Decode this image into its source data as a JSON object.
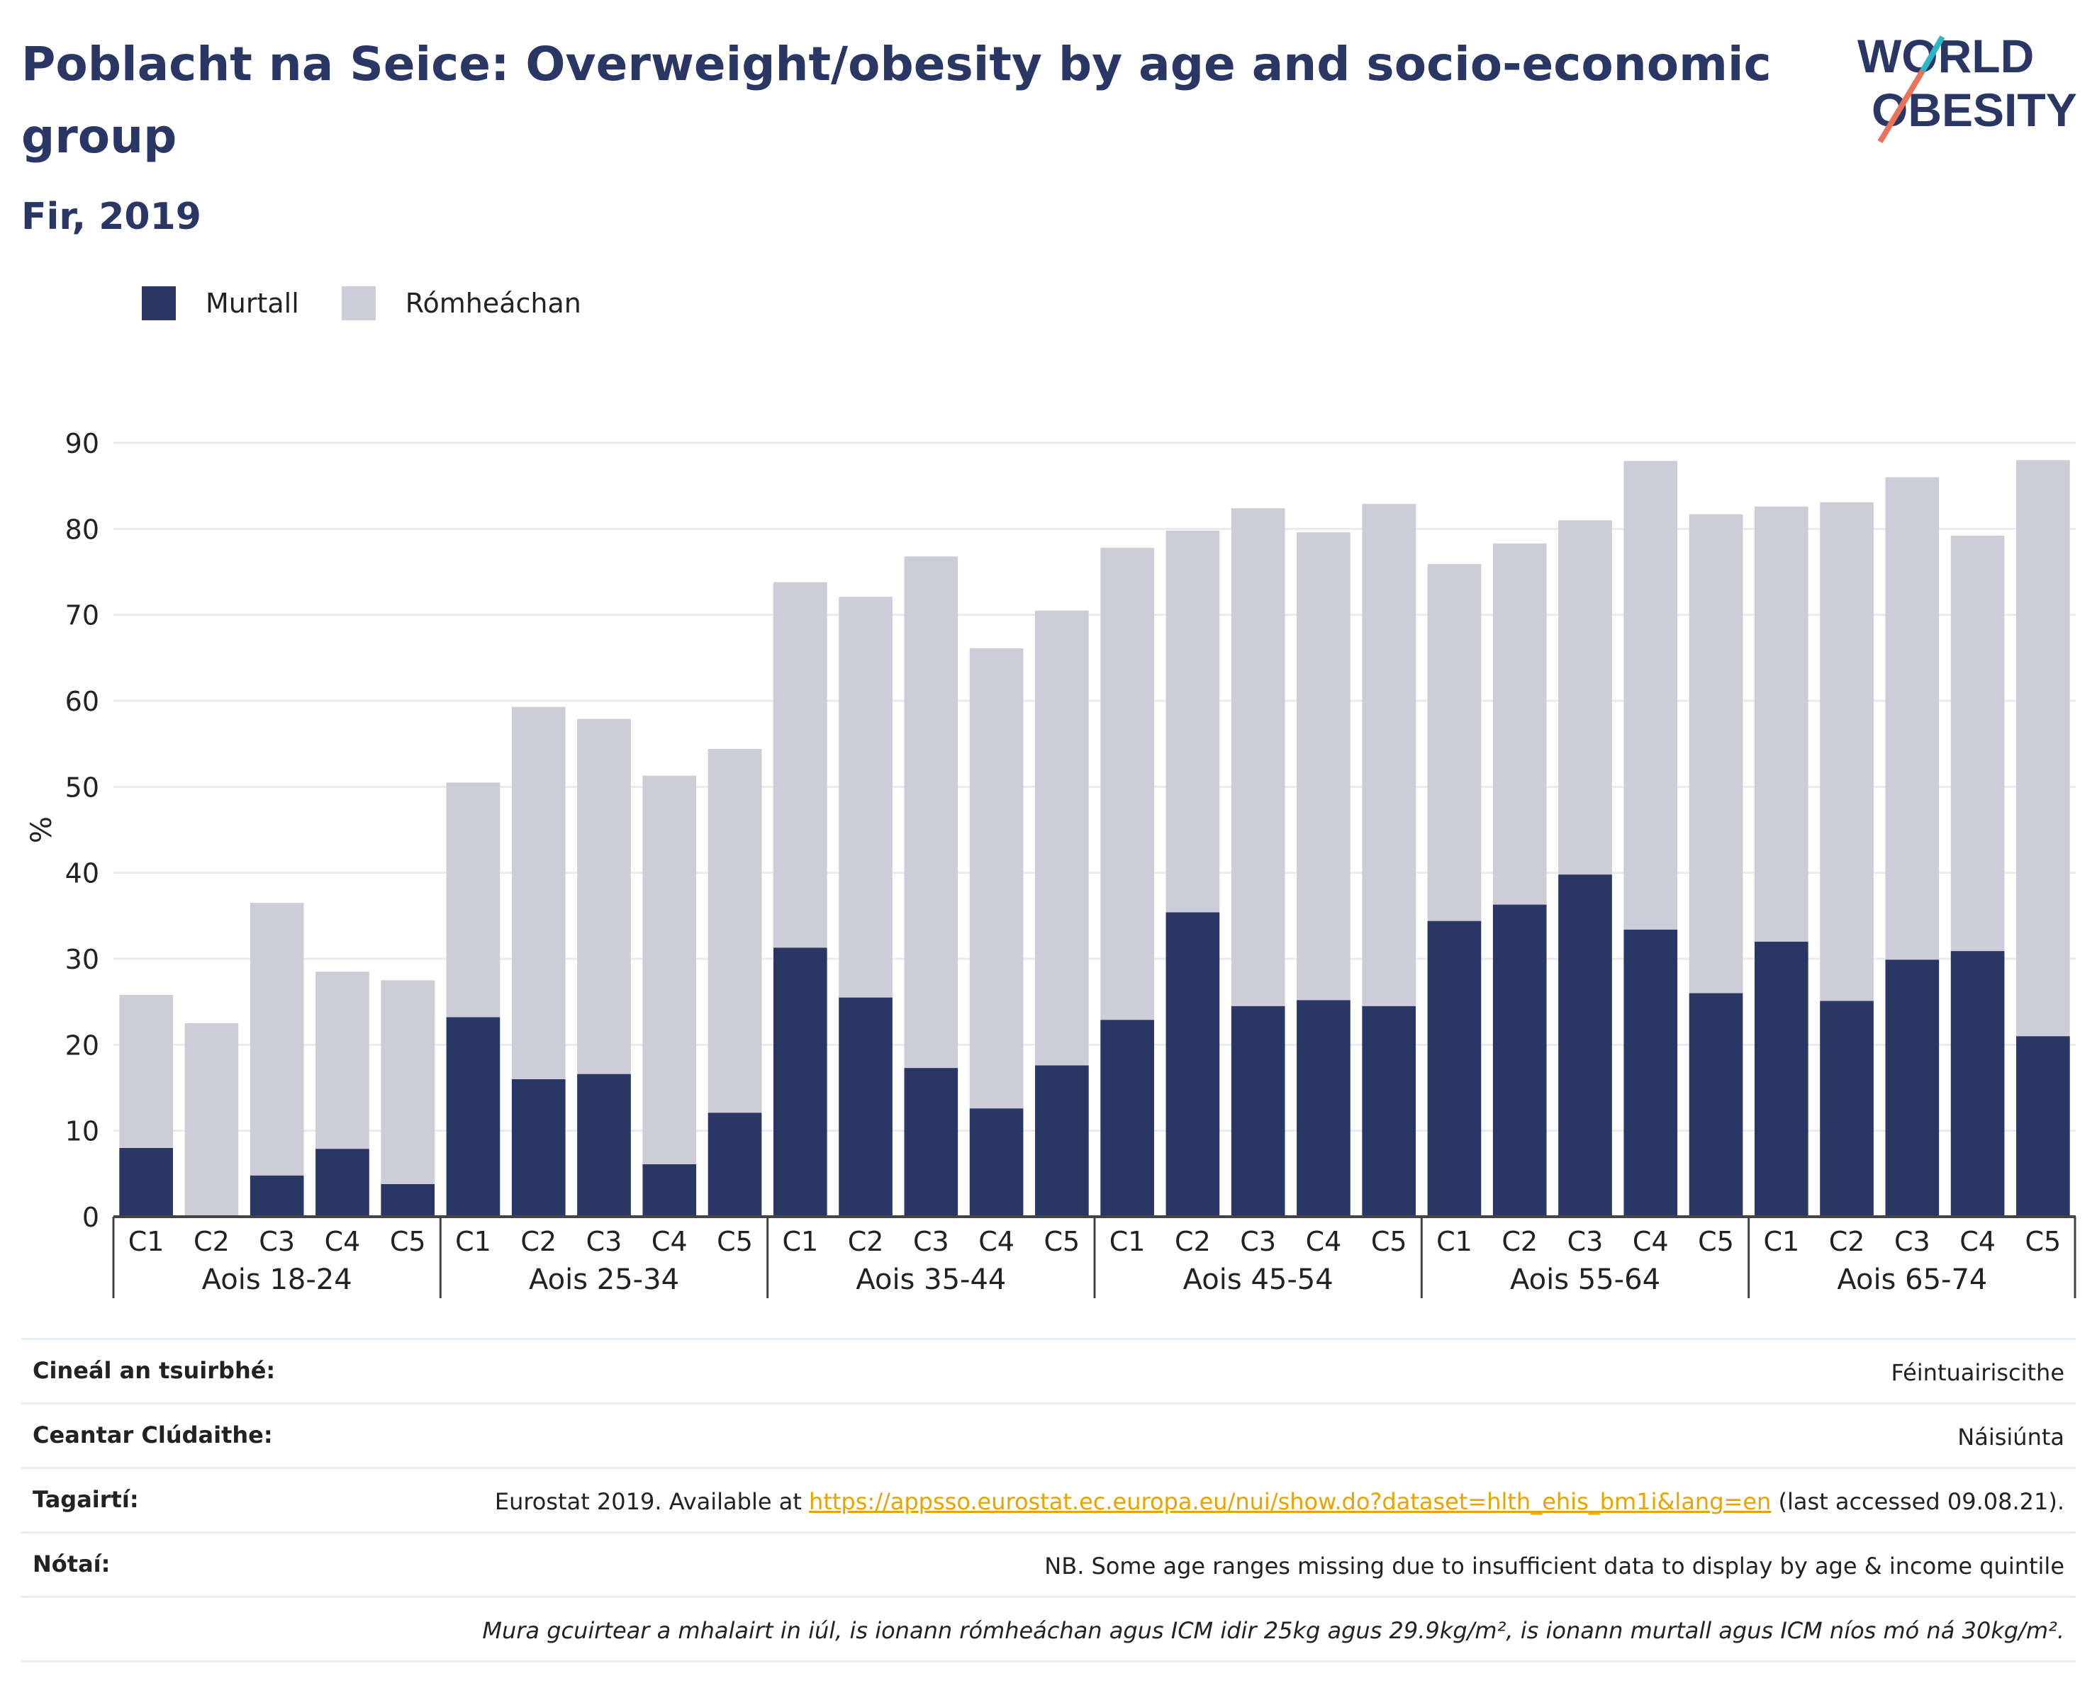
{
  "title": "Poblacht na Seice: Overweight/obesity by age and socio-economic group",
  "subtitle": "Fir, 2019",
  "logo": {
    "line1": "WORLD",
    "line2": "OBESITY",
    "colors": [
      "#2a3663",
      "#e8735a",
      "#2bb8c4"
    ]
  },
  "legend": [
    {
      "label": "Murtall",
      "color": "#2a3663"
    },
    {
      "label": "Rómheáchan",
      "color": "#cccdd9"
    }
  ],
  "chart_data": {
    "type": "bar",
    "stacked": true,
    "ylabel": "%",
    "xlabel": "",
    "ylim": [
      0,
      90
    ],
    "yticks": [
      0,
      10,
      20,
      30,
      40,
      50,
      60,
      70,
      80,
      90
    ],
    "grid": true,
    "legend_position": "top-left",
    "groups": [
      "Aois 18-24",
      "Aois 25-34",
      "Aois 35-44",
      "Aois 45-54",
      "Aois 55-64",
      "Aois 65-74"
    ],
    "categories": [
      "C1",
      "C2",
      "C3",
      "C4",
      "C5"
    ],
    "series": [
      {
        "name": "Murtall",
        "color": "#2a3663",
        "values": [
          [
            8,
            0,
            4.8,
            7.9,
            3.8
          ],
          [
            23.2,
            16,
            16.6,
            6.1,
            12.1
          ],
          [
            31.3,
            25.5,
            17.3,
            12.6,
            17.6
          ],
          [
            22.9,
            35.4,
            24.5,
            25.2,
            24.5
          ],
          [
            34.4,
            36.3,
            39.8,
            33.4,
            26
          ],
          [
            32,
            25.1,
            29.9,
            30.9,
            21
          ]
        ]
      },
      {
        "name": "Rómheáchan",
        "color": "#cccdd9",
        "values": [
          [
            17.8,
            22.5,
            31.7,
            20.6,
            23.7
          ],
          [
            27.3,
            43.3,
            41.3,
            45.2,
            42.3
          ],
          [
            42.5,
            46.6,
            59.5,
            53.5,
            52.9
          ],
          [
            54.9,
            44.4,
            57.9,
            54.4,
            58.4
          ],
          [
            41.5,
            42,
            41.2,
            54.5,
            55.7
          ],
          [
            50.6,
            58,
            56.1,
            48.3,
            67
          ]
        ]
      }
    ]
  },
  "info": [
    {
      "label": "Cineál an tsuirbhé:",
      "value": "Féintuairiscithe"
    },
    {
      "label": "Ceantar Clúdaithe:",
      "value": "Náisiúnta"
    },
    {
      "label": "Tagairtí:",
      "value_pre": "Eurostat 2019. Available at ",
      "link": "https://appsso.eurostat.ec.europa.eu/nui/show.do?dataset=hlth_ehis_bm1i&lang=en",
      "value_post": " (last accessed 09.08.21)."
    },
    {
      "label": "Nótaí:",
      "value": "NB. Some age ranges missing due to insufficient data to display by age & income quintile"
    },
    {
      "label": "",
      "value": "Mura gcuirtear a mhalairt in iúl, is ionann rómheáchan agus ICM idir 25kg agus 29.9kg/m², is ionann murtall agus ICM níos mó ná 30kg/m²."
    }
  ]
}
